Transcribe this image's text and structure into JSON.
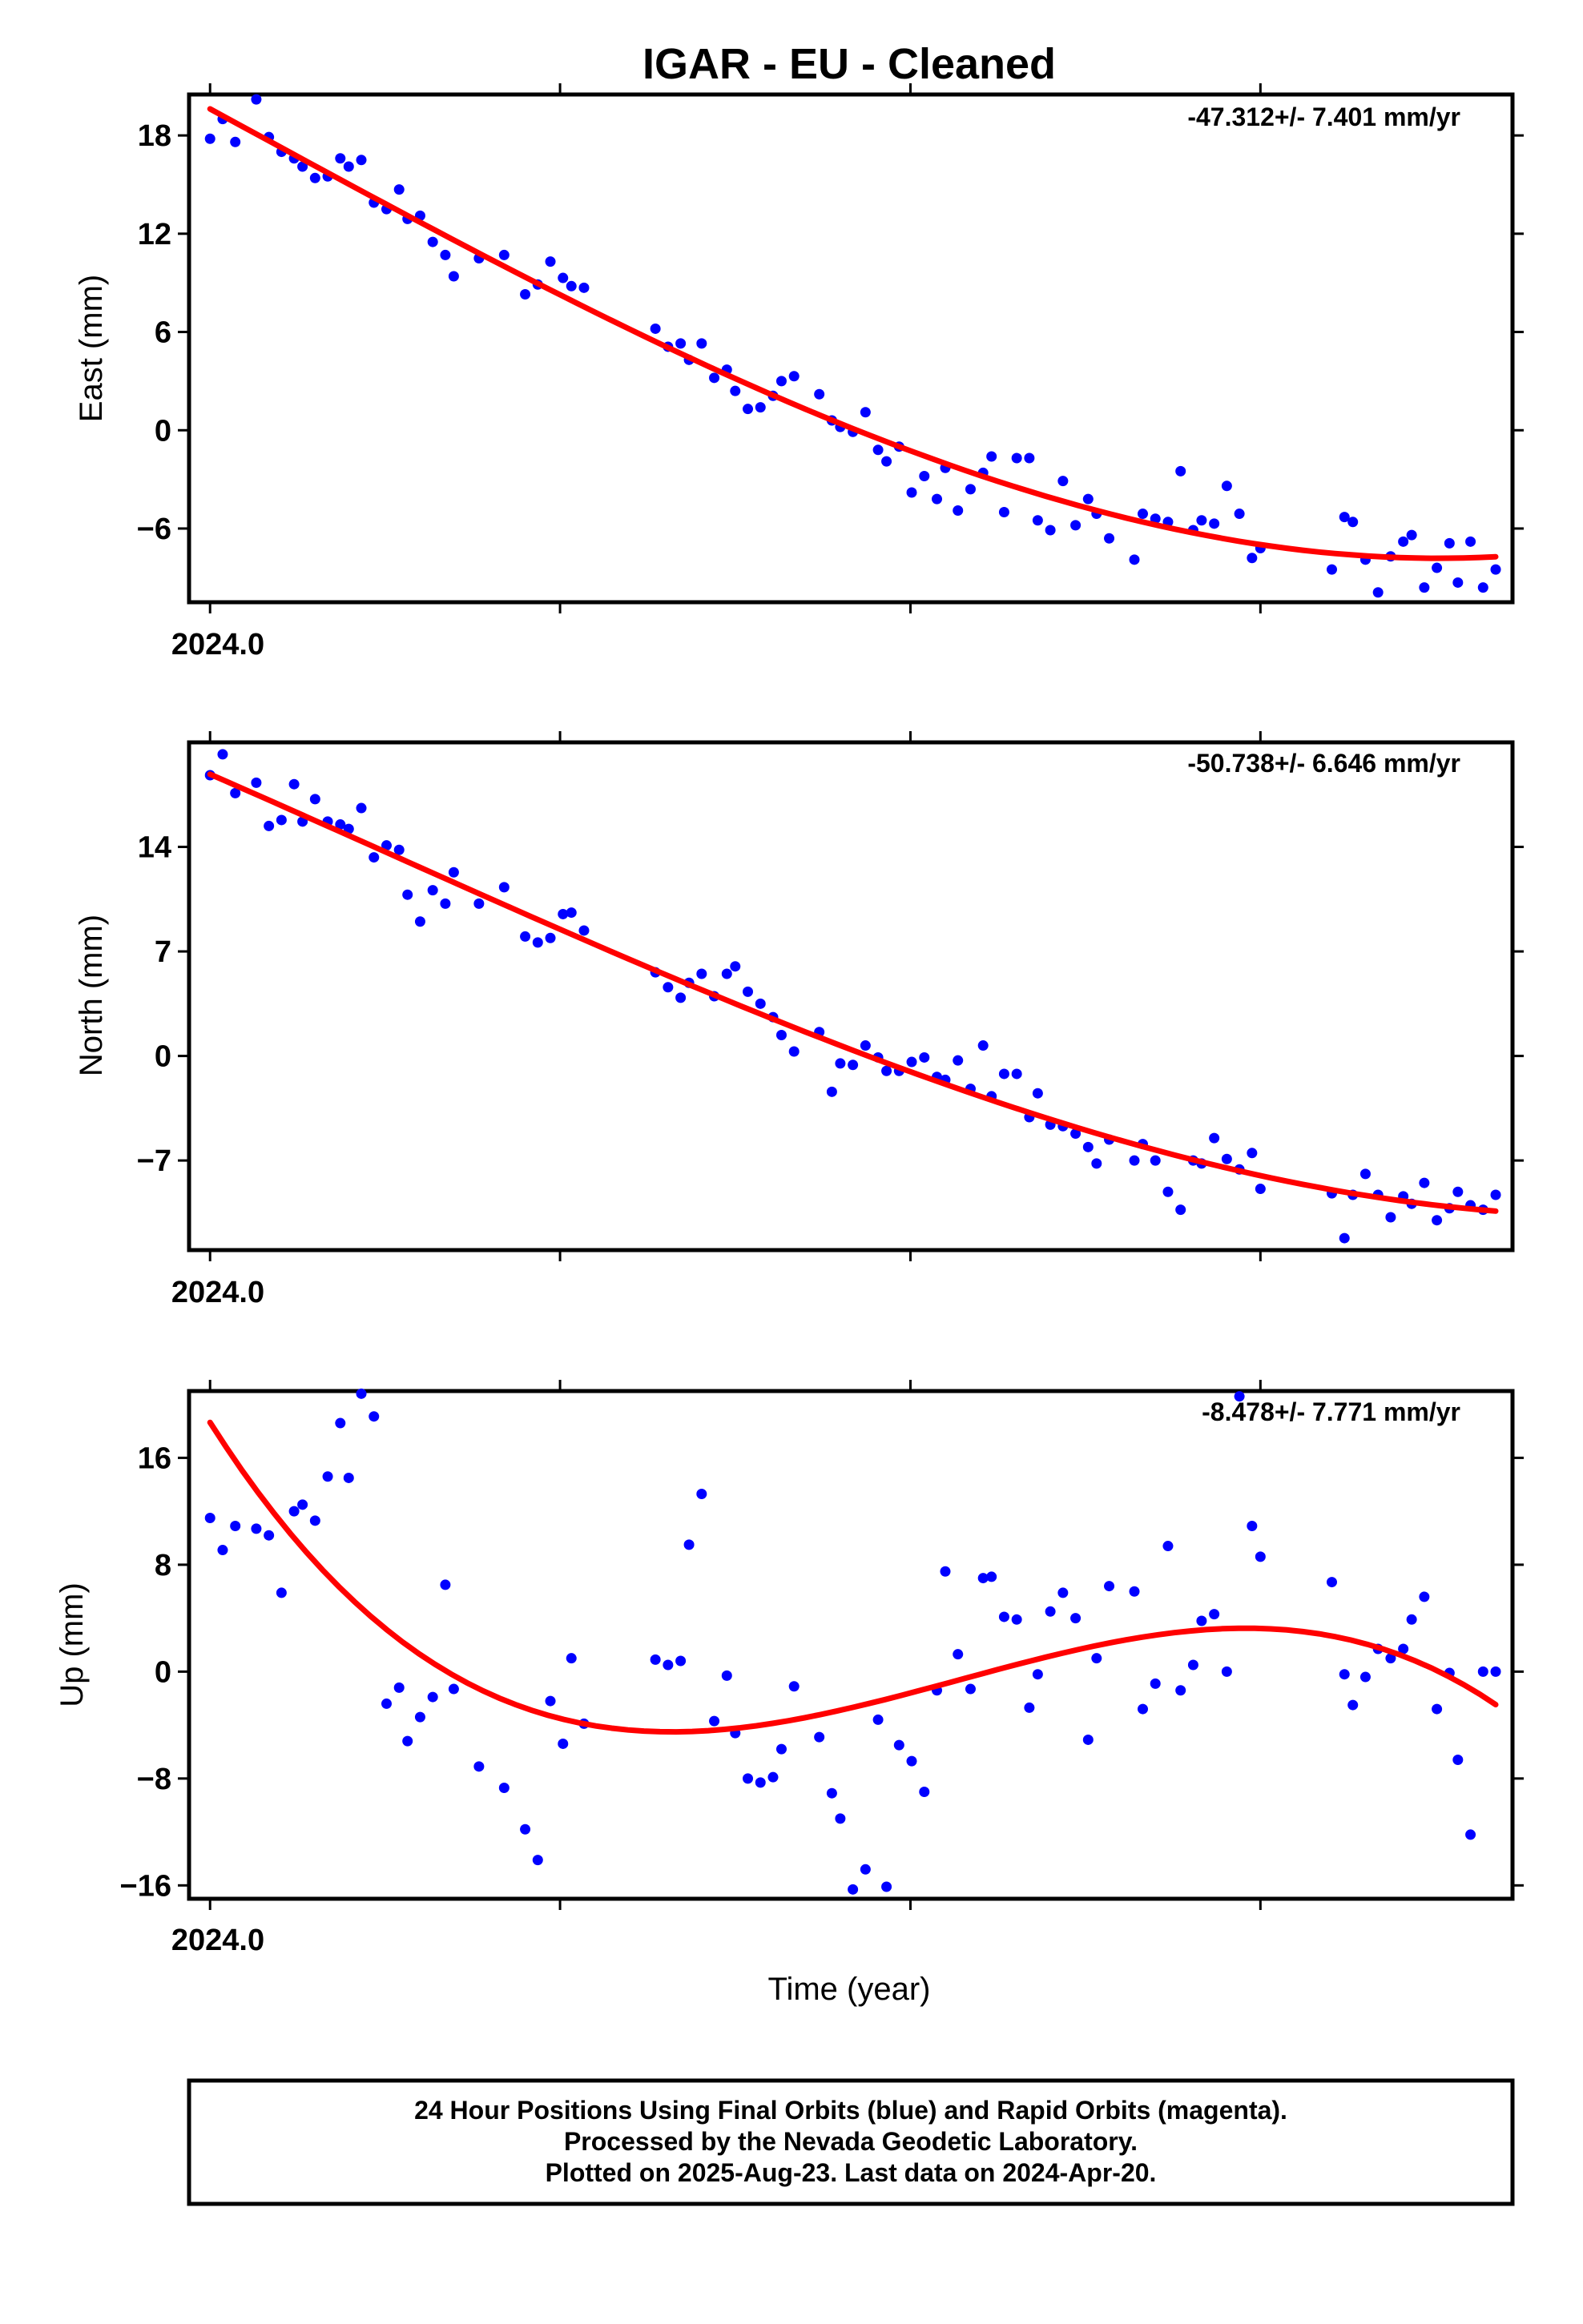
{
  "title": "IGAR  - EU - Cleaned",
  "xlabel": "Time (year)",
  "x_tick_label": "2024.0",
  "caption": [
    "24 Hour Positions Using Final Orbits (blue) and Rapid Orbits (magenta).",
    "Processed by the Nevada Geodetic Laboratory.",
    "Plotted on 2025-Aug-23. Last data on 2024-Apr-20."
  ],
  "colors": {
    "points": "#0000ff",
    "fit": "#ff0000",
    "frame": "#000000"
  },
  "chart_data": [
    {
      "type": "scatter",
      "ylabel": "East (mm)",
      "rate_label": "-47.312+/- 7.401 mm/yr",
      "xlim": [
        2023.995,
        2024.31
      ],
      "ylim": [
        -10.5,
        20.5
      ],
      "yticks": [
        18,
        12,
        6,
        0,
        -6
      ],
      "x": [
        2024.0,
        2024.003,
        2024.006,
        2024.011,
        2024.014,
        2024.017,
        2024.02,
        2024.022,
        2024.025,
        2024.028,
        2024.031,
        2024.033,
        2024.036,
        2024.039,
        2024.042,
        2024.045,
        2024.047,
        2024.05,
        2024.053,
        2024.056,
        2024.058,
        2024.064,
        2024.07,
        2024.075,
        2024.078,
        2024.081,
        2024.084,
        2024.086,
        2024.089,
        2024.106,
        2024.109,
        2024.112,
        2024.114,
        2024.117,
        2024.12,
        2024.123,
        2024.125,
        2024.128,
        2024.131,
        2024.134,
        2024.136,
        2024.139,
        2024.145,
        2024.148,
        2024.15,
        2024.153,
        2024.156,
        2024.159,
        2024.161,
        2024.164,
        2024.167,
        2024.17,
        2024.173,
        2024.175,
        2024.178,
        2024.181,
        2024.184,
        2024.186,
        2024.189,
        2024.192,
        2024.195,
        2024.197,
        2024.2,
        2024.203,
        2024.206,
        2024.209,
        2024.211,
        2024.214,
        2024.22,
        2024.222,
        2024.225,
        2024.228,
        2024.231,
        2024.234,
        2024.236,
        2024.239,
        2024.242,
        2024.245,
        2024.248,
        2024.25,
        2024.267,
        2024.27,
        2024.272,
        2024.275,
        2024.278,
        2024.281,
        2024.284,
        2024.286,
        2024.289,
        2024.292,
        2024.295,
        2024.297,
        2024.3,
        2024.303,
        2024.306
      ],
      "y": [
        17.8,
        19.0,
        17.6,
        20.2,
        17.9,
        17.0,
        16.6,
        16.1,
        15.4,
        15.5,
        16.6,
        16.1,
        16.5,
        13.9,
        13.5,
        14.7,
        12.9,
        13.1,
        11.5,
        10.7,
        9.4,
        10.5,
        10.7,
        8.3,
        8.9,
        10.3,
        9.3,
        8.8,
        8.7,
        6.2,
        5.1,
        5.3,
        4.3,
        5.3,
        3.2,
        3.7,
        2.4,
        1.3,
        1.4,
        2.1,
        3.0,
        3.3,
        2.2,
        0.6,
        0.2,
        -0.1,
        1.1,
        -1.2,
        -1.9,
        -1.0,
        -3.8,
        -2.8,
        -4.2,
        -2.3,
        -4.9,
        -3.6,
        -2.6,
        -1.6,
        -5.0,
        -1.7,
        -1.7,
        -5.5,
        -6.1,
        -3.1,
        -5.8,
        -4.2,
        -5.1,
        -6.6,
        -7.9,
        -5.1,
        -5.4,
        -5.6,
        -2.5,
        -6.1,
        -5.5,
        -5.7,
        -3.4,
        -5.1,
        -7.8,
        -7.2,
        -8.5,
        -5.3,
        -5.6,
        -7.9,
        -9.9,
        -7.7,
        -6.8,
        -6.4,
        -9.6,
        -8.4,
        -6.9,
        -9.3,
        -6.8,
        -9.6,
        -8.5
      ]
    },
    {
      "type": "scatter",
      "ylabel": "North (mm)",
      "rate_label": "-50.738+/- 6.646 mm/yr",
      "xlim": [
        2023.995,
        2024.31
      ],
      "ylim": [
        -13,
        21
      ],
      "yticks": [
        14,
        7,
        0,
        -7
      ],
      "x": [
        2024.0,
        2024.003,
        2024.006,
        2024.011,
        2024.014,
        2024.017,
        2024.02,
        2024.022,
        2024.025,
        2024.028,
        2024.031,
        2024.033,
        2024.036,
        2024.039,
        2024.042,
        2024.045,
        2024.047,
        2024.05,
        2024.053,
        2024.056,
        2024.058,
        2024.064,
        2024.07,
        2024.075,
        2024.078,
        2024.081,
        2024.084,
        2024.086,
        2024.089,
        2024.106,
        2024.109,
        2024.112,
        2024.114,
        2024.117,
        2024.12,
        2024.123,
        2024.125,
        2024.128,
        2024.131,
        2024.134,
        2024.136,
        2024.139,
        2024.145,
        2024.148,
        2024.15,
        2024.153,
        2024.156,
        2024.159,
        2024.161,
        2024.164,
        2024.167,
        2024.17,
        2024.173,
        2024.175,
        2024.178,
        2024.181,
        2024.184,
        2024.186,
        2024.189,
        2024.192,
        2024.195,
        2024.197,
        2024.2,
        2024.203,
        2024.206,
        2024.209,
        2024.211,
        2024.214,
        2024.22,
        2024.222,
        2024.225,
        2024.228,
        2024.231,
        2024.234,
        2024.236,
        2024.239,
        2024.242,
        2024.245,
        2024.248,
        2024.25,
        2024.267,
        2024.27,
        2024.272,
        2024.275,
        2024.278,
        2024.281,
        2024.284,
        2024.286,
        2024.289,
        2024.292,
        2024.295,
        2024.297,
        2024.3,
        2024.303,
        2024.306
      ],
      "y": [
        18.8,
        20.2,
        17.6,
        18.3,
        15.4,
        15.8,
        18.2,
        15.7,
        17.2,
        15.7,
        15.5,
        15.2,
        16.6,
        13.3,
        14.1,
        13.8,
        10.8,
        9.0,
        11.1,
        10.2,
        12.3,
        10.2,
        11.3,
        8.0,
        7.6,
        7.9,
        9.5,
        9.6,
        8.4,
        5.6,
        4.6,
        3.9,
        4.9,
        5.5,
        4.0,
        5.5,
        6.0,
        4.3,
        3.5,
        2.6,
        1.4,
        0.3,
        1.6,
        -2.4,
        -0.5,
        -0.6,
        0.7,
        -0.1,
        -1.0,
        -1.0,
        -0.4,
        -0.1,
        -1.4,
        -1.6,
        -0.3,
        -2.2,
        0.7,
        -2.7,
        -1.2,
        -1.2,
        -4.1,
        -2.5,
        -4.6,
        -4.7,
        -5.2,
        -6.1,
        -7.2,
        -5.6,
        -7.0,
        -5.9,
        -7.0,
        -9.1,
        -10.3,
        -7.0,
        -7.2,
        -5.5,
        -6.9,
        -7.6,
        -6.5,
        -8.9,
        -9.2,
        -12.2,
        -9.3,
        -7.9,
        -9.3,
        -10.8,
        -9.4,
        -9.9,
        -8.5,
        -11.0,
        -10.2,
        -9.1,
        -10.0,
        -10.3,
        -9.3
      ]
    },
    {
      "type": "scatter",
      "ylabel": "Up (mm)",
      "rate_label": "-8.478+/- 7.771 mm/yr",
      "xlim": [
        2023.995,
        2024.31
      ],
      "ylim": [
        -17,
        21
      ],
      "yticks": [
        16,
        8,
        0,
        -8,
        -16
      ],
      "x": [
        2024.0,
        2024.003,
        2024.006,
        2024.011,
        2024.014,
        2024.017,
        2024.02,
        2024.022,
        2024.025,
        2024.028,
        2024.031,
        2024.033,
        2024.036,
        2024.039,
        2024.042,
        2024.045,
        2024.047,
        2024.05,
        2024.053,
        2024.056,
        2024.058,
        2024.064,
        2024.07,
        2024.075,
        2024.078,
        2024.081,
        2024.084,
        2024.086,
        2024.089,
        2024.106,
        2024.109,
        2024.112,
        2024.114,
        2024.117,
        2024.12,
        2024.123,
        2024.125,
        2024.128,
        2024.131,
        2024.134,
        2024.136,
        2024.139,
        2024.145,
        2024.148,
        2024.15,
        2024.153,
        2024.156,
        2024.159,
        2024.161,
        2024.164,
        2024.167,
        2024.17,
        2024.173,
        2024.175,
        2024.178,
        2024.181,
        2024.184,
        2024.186,
        2024.189,
        2024.192,
        2024.195,
        2024.197,
        2024.2,
        2024.203,
        2024.206,
        2024.209,
        2024.211,
        2024.214,
        2024.22,
        2024.222,
        2024.225,
        2024.228,
        2024.231,
        2024.234,
        2024.236,
        2024.239,
        2024.242,
        2024.245,
        2024.248,
        2024.25,
        2024.267,
        2024.27,
        2024.272,
        2024.275,
        2024.278,
        2024.281,
        2024.284,
        2024.286,
        2024.289,
        2024.292,
        2024.295,
        2024.297,
        2024.3,
        2024.303,
        2024.306
      ],
      "y": [
        11.5,
        9.1,
        10.9,
        10.7,
        10.2,
        5.9,
        12.0,
        12.5,
        11.3,
        14.6,
        18.6,
        14.5,
        20.8,
        19.1,
        -2.4,
        -1.2,
        -5.2,
        -3.4,
        -1.9,
        6.5,
        -1.3,
        -7.1,
        -8.7,
        -11.8,
        -14.1,
        -2.2,
        -5.4,
        1.0,
        -3.9,
        0.9,
        0.5,
        0.8,
        9.5,
        13.3,
        -3.7,
        -0.3,
        -4.6,
        -8.0,
        -8.3,
        -7.9,
        -5.8,
        -1.1,
        -4.9,
        -9.1,
        -11.0,
        -16.3,
        -14.8,
        -3.6,
        -16.1,
        -5.5,
        -6.7,
        -9.0,
        -1.4,
        7.5,
        1.3,
        -1.3,
        7.0,
        7.1,
        4.1,
        3.9,
        -2.7,
        -0.2,
        4.5,
        5.9,
        4.0,
        -5.1,
        1.0,
        6.4,
        6.0,
        -2.8,
        -0.9,
        9.4,
        -1.4,
        0.5,
        3.8,
        4.3,
        0.0,
        20.6,
        10.9,
        8.6,
        6.7,
        -0.2,
        -2.5,
        -0.4,
        1.7,
        1.0,
        1.7,
        3.9,
        5.6,
        -2.8,
        -0.1,
        -6.6,
        -12.2,
        0.0,
        0.0
      ]
    }
  ]
}
